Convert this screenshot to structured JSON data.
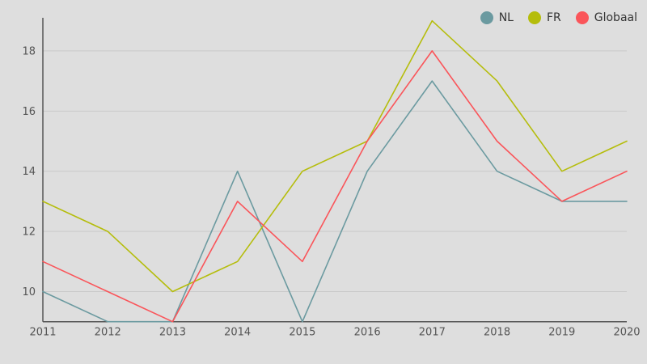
{
  "chart_data": {
    "type": "line",
    "x": [
      2011,
      2012,
      2013,
      2014,
      2015,
      2016,
      2017,
      2018,
      2019,
      2020
    ],
    "series": [
      {
        "name": "NL",
        "color": "#6b9aa0",
        "values": [
          10,
          9,
          9,
          14,
          9,
          14,
          17,
          14,
          13,
          13
        ]
      },
      {
        "name": "FR",
        "color": "#b5bd0c",
        "values": [
          13,
          12,
          10,
          11,
          14,
          15,
          19,
          17,
          14,
          15
        ]
      },
      {
        "name": "Globaal",
        "color": "#fa555a",
        "values": [
          11,
          10,
          9,
          13,
          11,
          15,
          18,
          15,
          13,
          14
        ]
      }
    ],
    "title": "",
    "xlabel": "",
    "ylabel": "",
    "ylim": [
      9,
      19.1
    ],
    "yticks": [
      10,
      12,
      14,
      16,
      18
    ],
    "grid": "horizontal",
    "legend_position": "top-right",
    "background_color": "#dedede",
    "grid_color": "#c9c9c9",
    "axis_color": "#555555",
    "tick_label_color": "#555555"
  }
}
